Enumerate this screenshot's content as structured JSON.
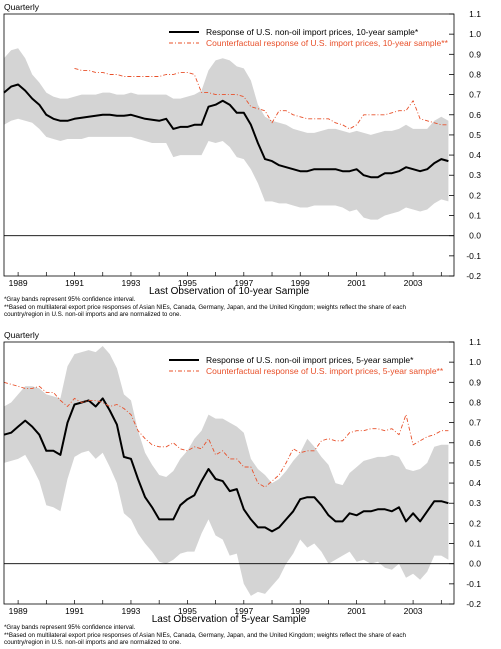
{
  "chart_data": [
    {
      "type": "line",
      "corner_label": "Quarterly",
      "xlabel": "Last Observation of 10-year Sample",
      "ylim": [
        -0.2,
        1.1
      ],
      "yticks": [
        "1.1",
        "1.0",
        "0.9",
        "0.8",
        "0.7",
        "0.6",
        "0.5",
        "0.4",
        "0.3",
        "0.2",
        "0.1",
        "0.0",
        "-0.1",
        "-0.2"
      ],
      "xlim": [
        1988.5,
        2004.45
      ],
      "xticks": [
        1989,
        1991,
        1993,
        1995,
        1997,
        1999,
        2001,
        2003
      ],
      "zero_line": 0.0,
      "legend_position": "top-center",
      "shading_color": "#d4d4d4",
      "series": [
        {
          "name": "Response of U.S. non-oil import prices, 10-year sample*",
          "color": "#000000",
          "style": "solid",
          "x": [
            1988.5,
            1988.75,
            1989,
            1989.25,
            1989.5,
            1989.75,
            1990,
            1990.25,
            1990.5,
            1990.75,
            1991,
            1991.25,
            1991.5,
            1991.75,
            1992,
            1992.25,
            1992.5,
            1992.75,
            1993,
            1993.25,
            1993.5,
            1993.75,
            1994,
            1994.25,
            1994.5,
            1994.75,
            1995,
            1995.25,
            1995.5,
            1995.75,
            1996,
            1996.25,
            1996.5,
            1996.75,
            1997,
            1997.25,
            1997.5,
            1997.75,
            1998,
            1998.25,
            1998.5,
            1998.75,
            1999,
            1999.25,
            1999.5,
            1999.75,
            2000,
            2000.25,
            2000.5,
            2000.75,
            2001,
            2001.25,
            2001.5,
            2001.75,
            2002,
            2002.25,
            2002.5,
            2002.75,
            2003,
            2003.25,
            2003.5,
            2003.75,
            2004,
            2004.25
          ],
          "values": [
            0.71,
            0.74,
            0.75,
            0.72,
            0.68,
            0.65,
            0.6,
            0.58,
            0.57,
            0.57,
            0.58,
            0.585,
            0.59,
            0.595,
            0.6,
            0.6,
            0.595,
            0.595,
            0.6,
            0.59,
            0.58,
            0.575,
            0.57,
            0.58,
            0.53,
            0.54,
            0.54,
            0.55,
            0.55,
            0.64,
            0.65,
            0.67,
            0.65,
            0.61,
            0.61,
            0.55,
            0.46,
            0.38,
            0.37,
            0.35,
            0.34,
            0.33,
            0.32,
            0.32,
            0.33,
            0.33,
            0.33,
            0.33,
            0.32,
            0.32,
            0.33,
            0.3,
            0.29,
            0.29,
            0.31,
            0.31,
            0.32,
            0.34,
            0.33,
            0.32,
            0.33,
            0.36,
            0.38,
            0.37
          ]
        },
        {
          "name": "Counterfactual response of U.S. import prices, 10-year sample**",
          "color": "#e8502a",
          "style": "dash-dot",
          "x": [
            1991,
            1991.25,
            1991.5,
            1991.75,
            1992,
            1992.25,
            1992.5,
            1992.75,
            1993,
            1993.25,
            1993.5,
            1993.75,
            1994,
            1994.25,
            1994.5,
            1994.75,
            1995,
            1995.25,
            1995.5,
            1995.75,
            1996,
            1996.25,
            1996.5,
            1996.75,
            1997,
            1997.25,
            1997.5,
            1997.75,
            1998,
            1998.25,
            1998.5,
            1998.75,
            1999,
            1999.25,
            1999.5,
            1999.75,
            2000,
            2000.25,
            2000.5,
            2000.75,
            2001,
            2001.25,
            2001.5,
            2001.75,
            2002,
            2002.25,
            2002.5,
            2002.75,
            2003,
            2003.25,
            2003.5,
            2003.75,
            2004,
            2004.25
          ],
          "values": [
            0.83,
            0.82,
            0.82,
            0.81,
            0.81,
            0.8,
            0.8,
            0.79,
            0.79,
            0.79,
            0.79,
            0.79,
            0.79,
            0.8,
            0.8,
            0.81,
            0.81,
            0.8,
            0.71,
            0.71,
            0.7,
            0.7,
            0.7,
            0.7,
            0.69,
            0.64,
            0.63,
            0.62,
            0.56,
            0.62,
            0.62,
            0.6,
            0.59,
            0.58,
            0.58,
            0.58,
            0.58,
            0.56,
            0.55,
            0.53,
            0.55,
            0.6,
            0.6,
            0.6,
            0.6,
            0.61,
            0.62,
            0.62,
            0.67,
            0.58,
            0.57,
            0.56,
            0.55,
            0.55
          ]
        }
      ],
      "band": {
        "x": [
          1988.5,
          1988.75,
          1989,
          1989.25,
          1989.5,
          1989.75,
          1990,
          1990.25,
          1990.5,
          1990.75,
          1991,
          1991.25,
          1991.5,
          1991.75,
          1992,
          1992.25,
          1992.5,
          1992.75,
          1993,
          1993.25,
          1993.5,
          1993.75,
          1994,
          1994.25,
          1994.5,
          1994.75,
          1995,
          1995.25,
          1995.5,
          1995.75,
          1996,
          1996.25,
          1996.5,
          1996.75,
          1997,
          1997.25,
          1997.5,
          1997.75,
          1998,
          1998.25,
          1998.5,
          1998.75,
          1999,
          1999.25,
          1999.5,
          1999.75,
          2000,
          2000.25,
          2000.5,
          2000.75,
          2001,
          2001.25,
          2001.5,
          2001.75,
          2002,
          2002.25,
          2002.5,
          2002.75,
          2003,
          2003.25,
          2003.5,
          2003.75,
          2004,
          2004.25
        ],
        "upper": [
          0.88,
          0.92,
          0.93,
          0.88,
          0.8,
          0.76,
          0.71,
          0.69,
          0.68,
          0.68,
          0.69,
          0.7,
          0.7,
          0.7,
          0.71,
          0.71,
          0.7,
          0.7,
          0.71,
          0.7,
          0.7,
          0.7,
          0.7,
          0.7,
          0.68,
          0.68,
          0.69,
          0.7,
          0.72,
          0.82,
          0.87,
          0.88,
          0.87,
          0.84,
          0.83,
          0.77,
          0.65,
          0.59,
          0.57,
          0.56,
          0.55,
          0.53,
          0.52,
          0.51,
          0.51,
          0.52,
          0.53,
          0.53,
          0.52,
          0.51,
          0.52,
          0.51,
          0.5,
          0.51,
          0.52,
          0.52,
          0.53,
          0.55,
          0.53,
          0.53,
          0.53,
          0.57,
          0.59,
          0.57
        ],
        "lower": [
          0.55,
          0.57,
          0.58,
          0.57,
          0.56,
          0.53,
          0.49,
          0.48,
          0.47,
          0.48,
          0.48,
          0.48,
          0.49,
          0.49,
          0.49,
          0.49,
          0.49,
          0.49,
          0.49,
          0.48,
          0.47,
          0.46,
          0.46,
          0.46,
          0.39,
          0.4,
          0.4,
          0.4,
          0.4,
          0.47,
          0.46,
          0.47,
          0.44,
          0.39,
          0.38,
          0.33,
          0.26,
          0.17,
          0.17,
          0.16,
          0.16,
          0.15,
          0.14,
          0.14,
          0.15,
          0.15,
          0.15,
          0.15,
          0.14,
          0.12,
          0.13,
          0.09,
          0.08,
          0.08,
          0.1,
          0.11,
          0.12,
          0.14,
          0.13,
          0.12,
          0.13,
          0.16,
          0.18,
          0.17
        ]
      },
      "notes": [
        "*Gray bands represent 95% confidence interval.",
        "**Based on multilateral export price responses of Asian NIEs, Canada, Germany, Japan, and the United Kingdom; weights reflect the share of each",
        "country/region in U.S. non-oil imports and are normalized to one."
      ]
    },
    {
      "type": "line",
      "corner_label": "Quarterly",
      "xlabel": "Last Observation of 5-year Sample",
      "ylim": [
        -0.2,
        1.1
      ],
      "yticks": [
        "1.1",
        "1.0",
        "0.9",
        "0.8",
        "0.7",
        "0.6",
        "0.5",
        "0.4",
        "0.3",
        "0.2",
        "0.1",
        "0.0",
        "-0.1",
        "-0.2"
      ],
      "xlim": [
        1988.5,
        2004.45
      ],
      "xticks": [
        1989,
        1991,
        1993,
        1995,
        1997,
        1999,
        2001,
        2003
      ],
      "zero_line": 0.0,
      "legend_position": "top-center",
      "shading_color": "#d4d4d4",
      "series": [
        {
          "name": "Response of U.S. non-oil import prices, 5-year sample*",
          "color": "#000000",
          "style": "solid",
          "x": [
            1988.5,
            1988.75,
            1989,
            1989.25,
            1989.5,
            1989.75,
            1990,
            1990.25,
            1990.5,
            1990.75,
            1991,
            1991.25,
            1991.5,
            1991.75,
            1992,
            1992.25,
            1992.5,
            1992.75,
            1993,
            1993.25,
            1993.5,
            1993.75,
            1994,
            1994.25,
            1994.5,
            1994.75,
            1995,
            1995.25,
            1995.5,
            1995.75,
            1996,
            1996.25,
            1996.5,
            1996.75,
            1997,
            1997.25,
            1997.5,
            1997.75,
            1998,
            1998.25,
            1998.5,
            1998.75,
            1999,
            1999.25,
            1999.5,
            1999.75,
            2000,
            2000.25,
            2000.5,
            2000.75,
            2001,
            2001.25,
            2001.5,
            2001.75,
            2002,
            2002.25,
            2002.5,
            2002.75,
            2003,
            2003.25,
            2003.5,
            2003.75,
            2004,
            2004.25
          ],
          "values": [
            0.64,
            0.65,
            0.68,
            0.71,
            0.68,
            0.64,
            0.56,
            0.56,
            0.54,
            0.7,
            0.79,
            0.8,
            0.81,
            0.78,
            0.82,
            0.76,
            0.69,
            0.53,
            0.52,
            0.42,
            0.33,
            0.28,
            0.22,
            0.22,
            0.22,
            0.29,
            0.32,
            0.34,
            0.41,
            0.47,
            0.42,
            0.41,
            0.36,
            0.37,
            0.27,
            0.22,
            0.18,
            0.18,
            0.16,
            0.18,
            0.22,
            0.26,
            0.32,
            0.33,
            0.33,
            0.29,
            0.24,
            0.21,
            0.21,
            0.25,
            0.24,
            0.26,
            0.26,
            0.27,
            0.27,
            0.26,
            0.28,
            0.21,
            0.25,
            0.21,
            0.26,
            0.31,
            0.31,
            0.3
          ]
        },
        {
          "name": "Counterfactual response of U.S. import prices, 5-year sample**",
          "color": "#e8502a",
          "style": "dash-dot",
          "x": [
            1988.5,
            1988.75,
            1989,
            1989.25,
            1989.5,
            1989.75,
            1990,
            1990.25,
            1990.5,
            1990.75,
            1991,
            1991.25,
            1991.5,
            1991.75,
            1992,
            1992.25,
            1992.5,
            1992.75,
            1993,
            1993.25,
            1993.5,
            1993.75,
            1994,
            1994.25,
            1994.5,
            1994.75,
            1995,
            1995.25,
            1995.5,
            1995.75,
            1996,
            1996.25,
            1996.5,
            1996.75,
            1997,
            1997.25,
            1997.5,
            1997.75,
            1998,
            1998.25,
            1998.5,
            1998.75,
            1999,
            1999.25,
            1999.5,
            1999.75,
            2000,
            2000.25,
            2000.5,
            2000.75,
            2001,
            2001.25,
            2001.5,
            2001.75,
            2002,
            2002.25,
            2002.5,
            2002.75,
            2003,
            2003.25,
            2003.5,
            2003.75,
            2004,
            2004.25
          ],
          "values": [
            0.9,
            0.89,
            0.88,
            0.87,
            0.87,
            0.88,
            0.85,
            0.85,
            0.81,
            0.78,
            0.82,
            0.8,
            0.81,
            0.81,
            0.8,
            0.78,
            0.79,
            0.77,
            0.74,
            0.66,
            0.62,
            0.59,
            0.58,
            0.58,
            0.6,
            0.57,
            0.56,
            0.58,
            0.57,
            0.62,
            0.54,
            0.56,
            0.52,
            0.52,
            0.48,
            0.48,
            0.4,
            0.38,
            0.41,
            0.44,
            0.5,
            0.57,
            0.55,
            0.56,
            0.56,
            0.61,
            0.62,
            0.61,
            0.61,
            0.65,
            0.66,
            0.66,
            0.67,
            0.67,
            0.66,
            0.67,
            0.64,
            0.74,
            0.59,
            0.61,
            0.63,
            0.64,
            0.66,
            0.66
          ]
        }
      ],
      "band": {
        "x": [
          1988.5,
          1988.75,
          1989,
          1989.25,
          1989.5,
          1989.75,
          1990,
          1990.25,
          1990.5,
          1990.75,
          1991,
          1991.25,
          1991.5,
          1991.75,
          1992,
          1992.25,
          1992.5,
          1992.75,
          1993,
          1993.25,
          1993.5,
          1993.75,
          1994,
          1994.25,
          1994.5,
          1994.75,
          1995,
          1995.25,
          1995.5,
          1995.75,
          1996,
          1996.25,
          1996.5,
          1996.75,
          1997,
          1997.25,
          1997.5,
          1997.75,
          1998,
          1998.25,
          1998.5,
          1998.75,
          1999,
          1999.25,
          1999.5,
          1999.75,
          2000,
          2000.25,
          2000.5,
          2000.75,
          2001,
          2001.25,
          2001.5,
          2001.75,
          2002,
          2002.25,
          2002.5,
          2002.75,
          2003,
          2003.25,
          2003.5,
          2003.75,
          2004,
          2004.25
        ],
        "upper": [
          0.78,
          0.8,
          0.84,
          0.88,
          0.88,
          0.87,
          0.84,
          0.83,
          0.82,
          0.98,
          1.04,
          1.05,
          1.06,
          1.05,
          1.08,
          1.04,
          0.97,
          0.84,
          0.81,
          0.66,
          0.55,
          0.49,
          0.44,
          0.43,
          0.46,
          0.52,
          0.56,
          0.62,
          0.66,
          0.74,
          0.72,
          0.72,
          0.7,
          0.68,
          0.65,
          0.52,
          0.47,
          0.44,
          0.4,
          0.42,
          0.46,
          0.51,
          0.55,
          0.62,
          0.58,
          0.53,
          0.49,
          0.4,
          0.39,
          0.45,
          0.48,
          0.51,
          0.52,
          0.53,
          0.53,
          0.54,
          0.53,
          0.47,
          0.46,
          0.47,
          0.5,
          0.58,
          0.59,
          0.59
        ],
        "lower": [
          0.5,
          0.51,
          0.52,
          0.54,
          0.48,
          0.41,
          0.29,
          0.28,
          0.26,
          0.42,
          0.53,
          0.55,
          0.56,
          0.52,
          0.55,
          0.48,
          0.4,
          0.25,
          0.22,
          0.15,
          0.1,
          0.06,
          0.01,
          0.0,
          0.02,
          0.05,
          0.06,
          0.06,
          0.15,
          0.22,
          0.14,
          0.12,
          0.04,
          0.05,
          -0.1,
          -0.16,
          -0.14,
          -0.15,
          -0.11,
          -0.07,
          0.0,
          0.05,
          0.12,
          0.08,
          0.1,
          0.06,
          0.0,
          0.02,
          0.04,
          0.06,
          0.01,
          0.02,
          0.0,
          0.01,
          -0.02,
          -0.03,
          0.0,
          -0.07,
          -0.05,
          -0.08,
          -0.04,
          0.04,
          0.04,
          0.02
        ]
      },
      "notes": [
        "*Gray bands represent 95% confidence interval.",
        "**Based on multilateral export price responses of Asian NIEs, Canada, Germany, Japan, and the United Kingdom; weights reflect the share of each",
        "country/region in U.S. non-oil imports and are normalized to one."
      ]
    }
  ]
}
